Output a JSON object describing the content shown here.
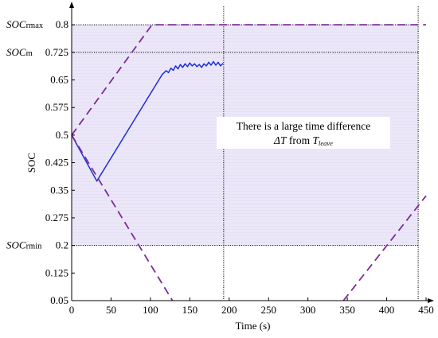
{
  "chart_data": {
    "type": "line",
    "title": "",
    "xlabel": "Time (s)",
    "ylabel": "SOC",
    "xlim": [
      0,
      450
    ],
    "ylim": [
      0.05,
      0.85
    ],
    "xticks": [
      "0",
      "50",
      "100",
      "150",
      "200",
      "250",
      "300",
      "350",
      "400",
      "450"
    ],
    "xtick_values": [
      0,
      50,
      100,
      150,
      200,
      250,
      300,
      350,
      400,
      450
    ],
    "yticks": [
      "0.05",
      "0.125",
      "0.2",
      "0.275",
      "0.35",
      "0.425",
      "0.5",
      "0.575",
      "0.65",
      "0.725",
      "0.8"
    ],
    "ytick_values": [
      0.05,
      0.125,
      0.2,
      0.275,
      0.35,
      0.425,
      0.5,
      0.575,
      0.65,
      0.725,
      0.8
    ],
    "grid": false,
    "series": [
      {
        "style": "solid",
        "color": "#1c2fd6",
        "points": [
          [
            0,
            0.5
          ],
          [
            32,
            0.375
          ],
          [
            115,
            0.665
          ],
          [
            120,
            0.675
          ],
          [
            123,
            0.67
          ],
          [
            126,
            0.682
          ],
          [
            129,
            0.676
          ],
          [
            132,
            0.688
          ],
          [
            135,
            0.68
          ],
          [
            138,
            0.692
          ],
          [
            141,
            0.684
          ],
          [
            144,
            0.694
          ],
          [
            147,
            0.686
          ],
          [
            150,
            0.696
          ],
          [
            153,
            0.688
          ],
          [
            156,
            0.694
          ],
          [
            159,
            0.686
          ],
          [
            162,
            0.692
          ],
          [
            165,
            0.684
          ],
          [
            168,
            0.694
          ],
          [
            171,
            0.688
          ],
          [
            174,
            0.698
          ],
          [
            177,
            0.69
          ],
          [
            180,
            0.7
          ],
          [
            183,
            0.69
          ],
          [
            186,
            0.698
          ],
          [
            189,
            0.688
          ],
          [
            192,
            0.695
          ]
        ]
      },
      {
        "style": "dashed",
        "color": "#7b2b9a",
        "points": [
          [
            0,
            0.5
          ],
          [
            102,
            0.8
          ],
          [
            450,
            0.8
          ]
        ]
      },
      {
        "style": "dashed",
        "color": "#7b2b9a",
        "points": [
          [
            0,
            0.5
          ],
          [
            128,
            0.05
          ]
        ]
      },
      {
        "style": "dashed",
        "color": "#7b2b9a",
        "points": [
          [
            345,
            0.05
          ],
          [
            450,
            0.335
          ]
        ]
      }
    ],
    "reference_lines": [
      {
        "axis": "y",
        "value": 0.8,
        "label_main": "SOC",
        "label_sub": "rmax",
        "style": "dotted"
      },
      {
        "axis": "y",
        "value": 0.725,
        "label_main": "SOC",
        "label_sub": "m",
        "style": "dotted"
      },
      {
        "axis": "y",
        "value": 0.2,
        "label_main": "SOC",
        "label_sub": "rmin",
        "style": "dotted"
      },
      {
        "axis": "x",
        "value": 193,
        "style": "dotted"
      },
      {
        "axis": "x",
        "value": 440,
        "style": "dotted"
      }
    ],
    "shaded_region": {
      "x": [
        0,
        440
      ],
      "y": [
        0.2,
        0.8
      ],
      "color": "#e9e4f7"
    },
    "annotation": {
      "line1": "There is a large time difference",
      "line2_delta": "ΔT",
      "line2_from": " from ",
      "line2_T": "T",
      "line2_sub": "leave"
    }
  }
}
